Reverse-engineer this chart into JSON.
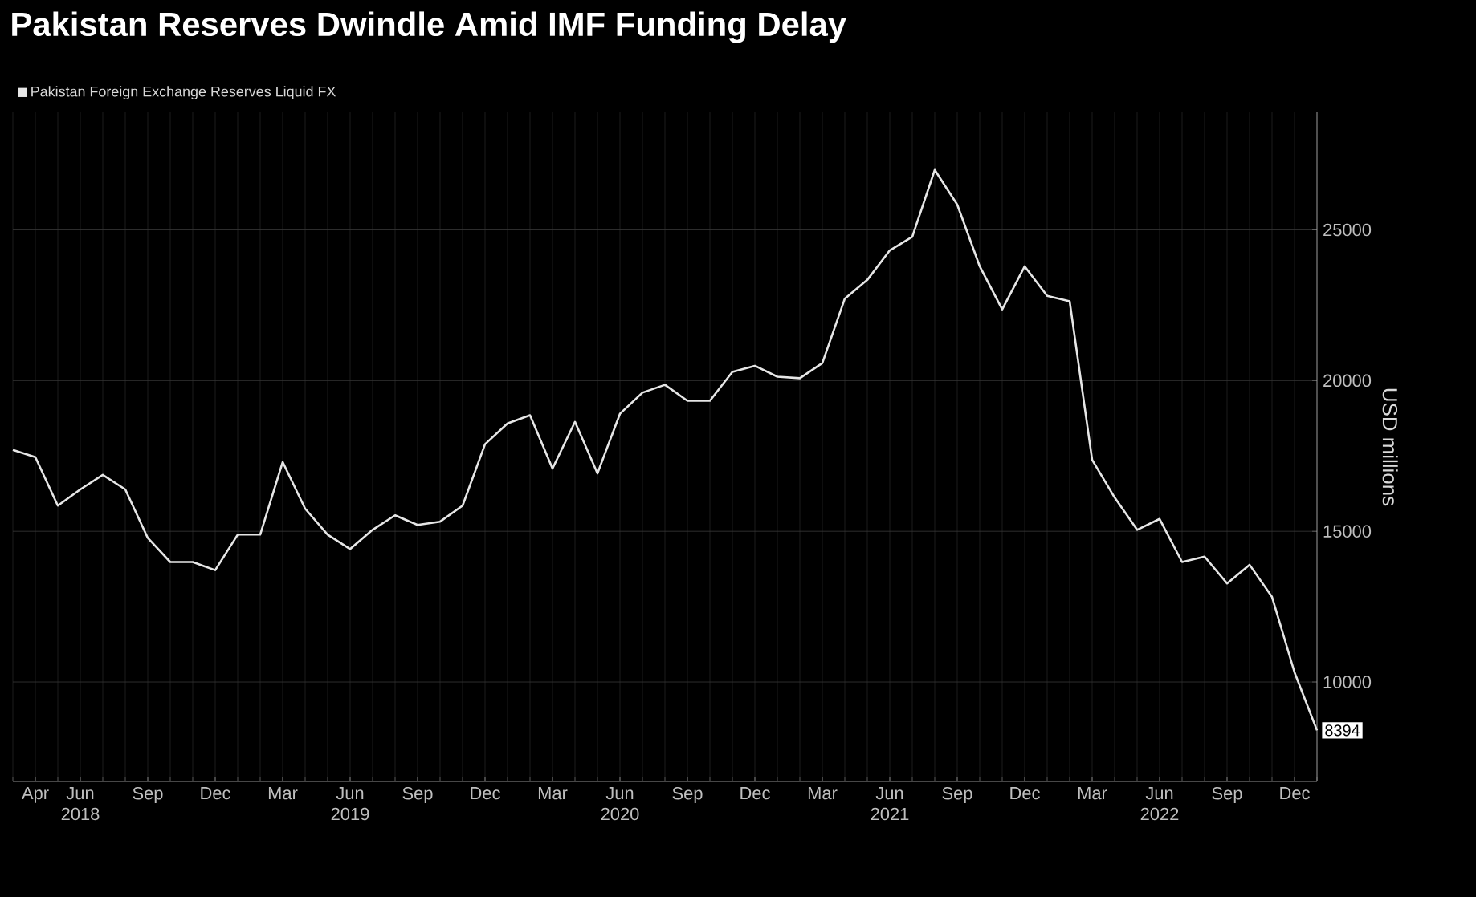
{
  "chart_data": {
    "type": "line",
    "title": "Pakistan Reserves Dwindle Amid IMF Funding Delay",
    "ylabel": "USD millions",
    "x": [
      "2018-03",
      "2018-04",
      "2018-05",
      "2018-06",
      "2018-07",
      "2018-08",
      "2018-09",
      "2018-10",
      "2018-11",
      "2018-12",
      "2019-01",
      "2019-02",
      "2019-03",
      "2019-04",
      "2019-05",
      "2019-06",
      "2019-07",
      "2019-08",
      "2019-09",
      "2019-10",
      "2019-11",
      "2019-12",
      "2020-01",
      "2020-02",
      "2020-03",
      "2020-04",
      "2020-05",
      "2020-06",
      "2020-07",
      "2020-08",
      "2020-09",
      "2020-10",
      "2020-11",
      "2020-12",
      "2021-01",
      "2021-02",
      "2021-03",
      "2021-04",
      "2021-05",
      "2021-06",
      "2021-07",
      "2021-08",
      "2021-09",
      "2021-10",
      "2021-11",
      "2021-12",
      "2022-01",
      "2022-02",
      "2022-03",
      "2022-04",
      "2022-05",
      "2022-06",
      "2022-07",
      "2022-08",
      "2022-09",
      "2022-10",
      "2022-11",
      "2022-12",
      "2023-01"
    ],
    "series": [
      {
        "name": "Pakistan Foreign Exchange Reserves Liquid FX",
        "color": "#e6e6e6",
        "values": [
          17700,
          17460,
          15850,
          16390,
          16870,
          16390,
          14780,
          13980,
          13980,
          13710,
          14890,
          14890,
          17300,
          15750,
          14890,
          14410,
          15050,
          15530,
          15210,
          15320,
          15850,
          17890,
          18580,
          18850,
          17080,
          18630,
          16920,
          18900,
          19600,
          19860,
          19330,
          19330,
          20290,
          20490,
          20130,
          20080,
          20580,
          22720,
          23340,
          24320,
          24770,
          26990,
          25840,
          23790,
          22360,
          23790,
          22810,
          22630,
          17370,
          16120,
          15050,
          15410,
          13980,
          14160,
          13270,
          13890,
          12820,
          10320,
          8394
        ]
      }
    ],
    "xlim": [
      "2018-03",
      "2023-01"
    ],
    "xticks": [
      {
        "value": "2018-04",
        "label": "Apr"
      },
      {
        "value": "2018-06",
        "label": "Jun 2018"
      },
      {
        "value": "2018-09",
        "label": "Sep"
      },
      {
        "value": "2018-12",
        "label": "Dec"
      },
      {
        "value": "2019-03",
        "label": "Mar"
      },
      {
        "value": "2019-06",
        "label": "Jun 2019"
      },
      {
        "value": "2019-09",
        "label": "Sep"
      },
      {
        "value": "2019-12",
        "label": "Dec"
      },
      {
        "value": "2020-03",
        "label": "Mar"
      },
      {
        "value": "2020-06",
        "label": "Jun 2020"
      },
      {
        "value": "2020-09",
        "label": "Sep"
      },
      {
        "value": "2020-12",
        "label": "Dec"
      },
      {
        "value": "2021-03",
        "label": "Mar"
      },
      {
        "value": "2021-06",
        "label": "Jun 2021"
      },
      {
        "value": "2021-09",
        "label": "Sep"
      },
      {
        "value": "2021-12",
        "label": "Dec"
      },
      {
        "value": "2022-03",
        "label": "Mar"
      },
      {
        "value": "2022-06",
        "label": "Jun 2022"
      },
      {
        "value": "2022-09",
        "label": "Sep"
      },
      {
        "value": "2022-12",
        "label": "Dec"
      }
    ],
    "ylim": [
      6700,
      28900
    ],
    "yticks": [
      10000,
      15000,
      20000,
      25000
    ],
    "annotations": [
      {
        "text": "8394",
        "x": "2023-01",
        "y": 8394
      }
    ],
    "grid": true,
    "legend": "top left",
    "marker": "none",
    "line_style": "solid"
  }
}
